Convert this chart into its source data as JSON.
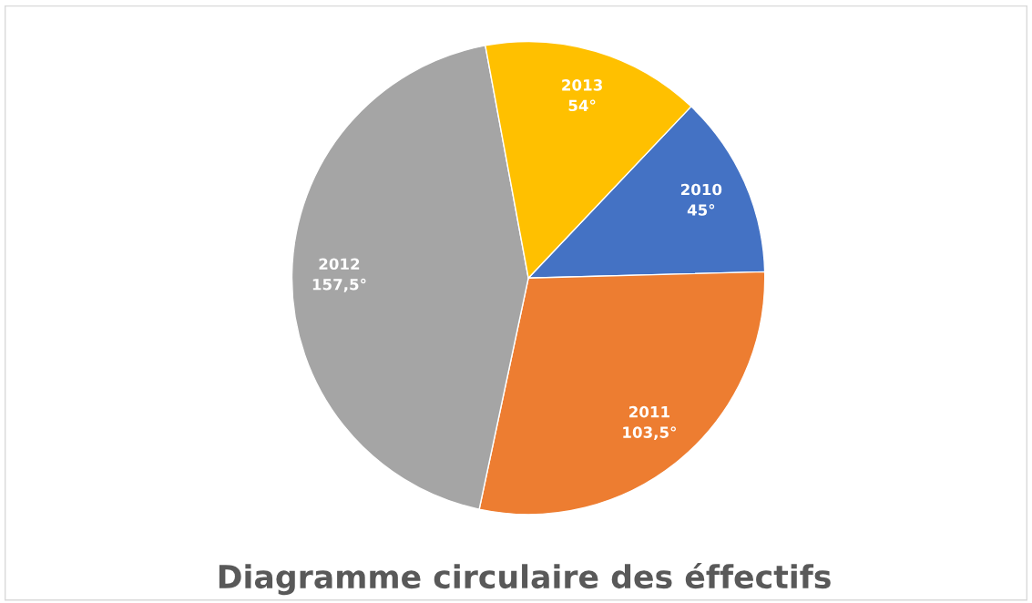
{
  "chart_data": {
    "type": "pie",
    "title": "Diagramme circulaire des éffectifs",
    "categories": [
      "2010",
      "2011",
      "2012",
      "2013"
    ],
    "values": [
      45,
      103.5,
      157.5,
      54
    ],
    "colors": [
      "#4472c4",
      "#ed7d31",
      "#a5a5a5",
      "#ffc000"
    ],
    "value_labels": [
      "45°",
      "103,5°",
      "157,5°",
      "54°"
    ]
  }
}
